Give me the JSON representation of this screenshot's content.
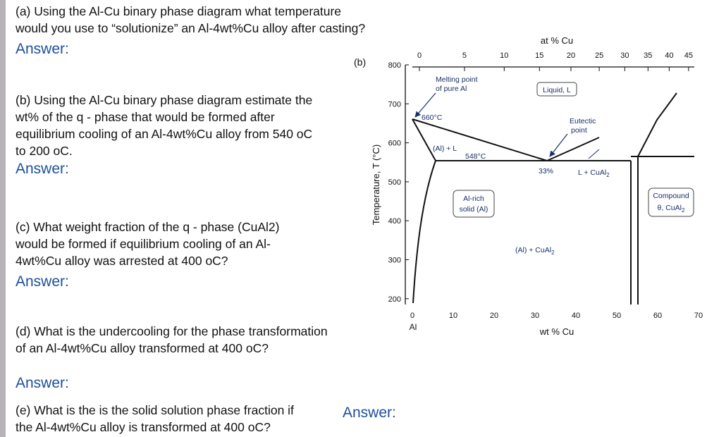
{
  "questions": [
    {
      "lines": [
        "(a) Using the Al-Cu binary phase diagram what temperature",
        "would you use to “solutionize” an Al-4wt%Cu alloy after casting?"
      ],
      "answer": "Answer:"
    },
    {
      "lines": [
        "(b) Using the Al-Cu binary phase diagram estimate the",
        "wt% of the  q - phase that would be formed after",
        "equilibrium cooling of an Al-4wt%Cu alloy from 540 oC",
        "to 200 oC."
      ],
      "answer": "Answer:"
    },
    {
      "lines": [
        "(c) What weight fraction of the q - phase (CuAl2)",
        "would be formed if equilibrium cooling of an Al-",
        "4wt%Cu alloy was arrested at 400 oC?"
      ],
      "answer": "Answer:"
    },
    {
      "lines": [
        "(d) What is the undercooling for the phase transformation",
        "of an Al-4wt%Cu alloy transformed at 400 oC?"
      ],
      "answer": "Answer:"
    },
    {
      "lines": [
        "(e) What is the is the solid solution phase fraction if",
        "the Al-4wt%Cu alloy is transformed at 400 oC?"
      ],
      "answer": "Answer:"
    }
  ],
  "diagram": {
    "label": "(b)",
    "top_title": "at % Cu",
    "x_title": "wt % Cu",
    "y_title": "Temperature, T (°C)",
    "origin_label": "Al",
    "at_ticks": [
      0,
      5,
      10,
      15,
      20,
      25,
      30,
      35,
      40,
      45
    ],
    "wt_ticks": [
      0,
      10,
      20,
      30,
      40,
      50,
      60,
      70
    ],
    "temp_ticks": [
      800,
      700,
      600,
      500,
      400,
      300,
      200
    ],
    "annotations": {
      "melting": [
        "Melting point",
        "of pure Al"
      ],
      "melt_temp": "660°C",
      "liquid": "Liquid, L",
      "eutectic": [
        "Eutectic",
        "point"
      ],
      "al_l": "(Al) + L",
      "eut_temp": "548°C",
      "eut_comp": "33%",
      "l_cual2": [
        "L + CuAl",
        "2"
      ],
      "al_rich": [
        "Al-rich",
        "solid (Al)"
      ],
      "al_cual2": [
        "(Al) + CuAl",
        "2"
      ],
      "compound": [
        "Compound",
        "θ, CuAl",
        "2"
      ]
    }
  }
}
